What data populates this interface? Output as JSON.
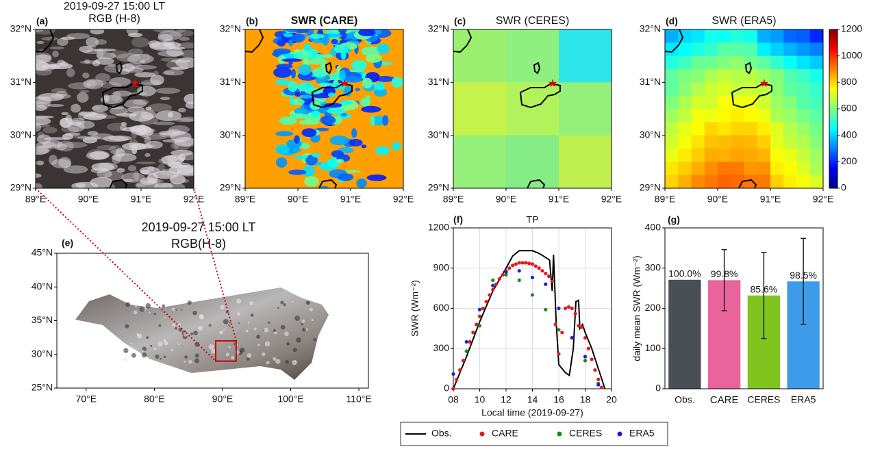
{
  "chart_data": [
    {
      "type": "image-map",
      "label": "(a)",
      "title": "2019-09-27 15:00 LT",
      "subtitle": "RGB (H-8)",
      "xlim": [
        89,
        92
      ],
      "ylim": [
        29,
        32
      ],
      "xticks": [
        {
          "value": 89,
          "label": "89°E"
        },
        {
          "value": 90,
          "label": "90°E"
        },
        {
          "value": 91,
          "label": "91°E"
        },
        {
          "value": 92,
          "label": "92°E"
        }
      ],
      "yticks": [
        {
          "value": 29,
          "label": "29°N"
        },
        {
          "value": 30,
          "label": "30°N"
        },
        {
          "value": 31,
          "label": "31°N"
        },
        {
          "value": 32,
          "label": "32°N"
        }
      ]
    },
    {
      "type": "image-map",
      "label": "(b)",
      "title": "SWR (CARE)",
      "xlim": [
        89,
        92
      ],
      "ylim": [
        29,
        32
      ],
      "xticks": [
        {
          "value": 89,
          "label": "89°E"
        },
        {
          "value": 90,
          "label": "90°E"
        },
        {
          "value": 91,
          "label": "91°E"
        },
        {
          "value": 92,
          "label": "92°E"
        }
      ],
      "yticks": [
        {
          "value": 29,
          "label": "29°N"
        },
        {
          "value": 30,
          "label": "30°N"
        },
        {
          "value": 31,
          "label": "31°N"
        },
        {
          "value": 32,
          "label": "32°N"
        }
      ]
    },
    {
      "type": "image-map",
      "label": "(c)",
      "title": "SWR (CERES)",
      "xlim": [
        89,
        92
      ],
      "ylim": [
        29,
        32
      ],
      "xticks": [
        {
          "value": 89,
          "label": "89°E"
        },
        {
          "value": 90,
          "label": "90°E"
        },
        {
          "value": 91,
          "label": "91°E"
        },
        {
          "value": 92,
          "label": "92°E"
        }
      ],
      "yticks": [
        {
          "value": 29,
          "label": "29°N"
        },
        {
          "value": 30,
          "label": "30°N"
        },
        {
          "value": 31,
          "label": "31°N"
        },
        {
          "value": 32,
          "label": "32°N"
        }
      ]
    },
    {
      "type": "image-map",
      "label": "(d)",
      "title": "SWR (ERA5)",
      "xlim": [
        89,
        92
      ],
      "ylim": [
        29,
        32
      ],
      "xticks": [
        {
          "value": 89,
          "label": "89°E"
        },
        {
          "value": 90,
          "label": "90°E"
        },
        {
          "value": 91,
          "label": "91°E"
        },
        {
          "value": 92,
          "label": "92°E"
        }
      ],
      "yticks": [
        {
          "value": 29,
          "label": "29°N"
        },
        {
          "value": 30,
          "label": "30°N"
        },
        {
          "value": 31,
          "label": "31°N"
        },
        {
          "value": 32,
          "label": "32°N"
        }
      ],
      "colorbar": {
        "lim": [
          0,
          1200
        ],
        "ticks": [
          0,
          200,
          400,
          600,
          800,
          1000,
          1200
        ]
      }
    },
    {
      "type": "image-map",
      "label": "(e)",
      "title": "2019-09-27 15:00 LT",
      "subtitle": "RGB(H-8)",
      "xlim": [
        65.7,
        111.4
      ],
      "ylim": [
        25,
        45
      ],
      "xticks": [
        {
          "value": 70,
          "label": "70°E"
        },
        {
          "value": 80,
          "label": "80°E"
        },
        {
          "value": 90,
          "label": "90°E"
        },
        {
          "value": 100,
          "label": "100°E"
        },
        {
          "value": 110,
          "label": "110°E"
        }
      ],
      "yticks": [
        {
          "value": 25,
          "label": "25°N"
        },
        {
          "value": 30,
          "label": "30°N"
        },
        {
          "value": 35,
          "label": "35°N"
        },
        {
          "value": 40,
          "label": "40°N"
        },
        {
          "value": 45,
          "label": "45°N"
        }
      ]
    },
    {
      "type": "line",
      "label": "(f)",
      "title": "TP",
      "xlabel": "Local time (2019-09-27)",
      "ylabel": "SWR (Wm⁻²)",
      "xlim": [
        8,
        20
      ],
      "ylim": [
        0,
        1200
      ],
      "grid": true,
      "xticks": [
        {
          "value": 8,
          "label": "08"
        },
        10,
        12,
        14,
        16,
        18,
        20
      ],
      "yticks": [
        0,
        300,
        600,
        900,
        1200
      ],
      "series": [
        {
          "name": "Obs.",
          "color": "#000000",
          "kind": "line",
          "x": [
            8,
            9,
            10,
            11,
            12,
            12.5,
            13,
            14,
            14.5,
            15,
            15.3,
            15.5,
            15.6,
            15.8,
            16,
            16.5,
            16.8,
            17.1,
            17.3,
            17.5,
            17.6,
            17.8,
            18,
            18.5,
            19,
            19.5
          ],
          "values": [
            0,
            240,
            500,
            730,
            900,
            990,
            1030,
            1030,
            1010,
            980,
            960,
            730,
            1000,
            500,
            180,
            120,
            100,
            300,
            650,
            660,
            450,
            480,
            420,
            300,
            150,
            0
          ]
        },
        {
          "name": "CARE",
          "color": "#e31a1c",
          "kind": "scatter",
          "x": [
            8,
            8.25,
            8.5,
            8.75,
            9,
            9.25,
            9.5,
            9.75,
            10,
            10.25,
            10.5,
            10.75,
            11,
            11.25,
            11.5,
            11.75,
            12,
            12.25,
            12.5,
            12.75,
            13,
            13.25,
            13.5,
            13.75,
            14,
            14.25,
            14.5,
            14.75,
            15,
            15.25,
            15.5,
            15.75,
            16,
            16.25,
            16.5,
            16.75,
            17,
            17.25,
            17.5,
            17.75,
            18,
            18.25,
            18.5,
            18.75,
            19,
            19.25
          ],
          "values": [
            0,
            70,
            140,
            210,
            280,
            350,
            420,
            480,
            540,
            600,
            650,
            700,
            740,
            780,
            820,
            850,
            880,
            900,
            920,
            930,
            940,
            940,
            940,
            935,
            930,
            915,
            900,
            880,
            860,
            840,
            800,
            480,
            260,
            420,
            600,
            610,
            600,
            560,
            470,
            460,
            380,
            300,
            220,
            140,
            70,
            10
          ]
        },
        {
          "name": "CERES",
          "color": "#1a8a1a",
          "kind": "scatter",
          "x": [
            9,
            10,
            11,
            12,
            13,
            14,
            15,
            16,
            17,
            18,
            19
          ],
          "values": [
            280,
            470,
            810,
            850,
            810,
            700,
            590,
            440,
            380,
            210,
            40
          ]
        },
        {
          "name": "ERA5",
          "color": "#1f1fd6",
          "kind": "scatter",
          "x": [
            8,
            9,
            10,
            11,
            12,
            13,
            14,
            15,
            16,
            17,
            18,
            19
          ],
          "values": [
            110,
            350,
            590,
            770,
            870,
            880,
            830,
            780,
            600,
            380,
            240,
            30
          ]
        }
      ]
    },
    {
      "type": "bar",
      "label": "(g)",
      "ylabel": "daily mean SWR (Wm⁻²)",
      "categories": [
        "Obs.",
        "CARE",
        "CERES",
        "ERA5"
      ],
      "values": [
        271,
        270,
        232,
        267
      ],
      "errors": [
        null,
        76,
        107,
        107
      ],
      "colors": [
        "#4a4f55",
        "#e8649a",
        "#7fc41f",
        "#3d9be9"
      ],
      "percent_labels": [
        "100.0%",
        "99.8%",
        "85.6%",
        "98.5%"
      ],
      "ylim": [
        0,
        400
      ],
      "yticks": [
        0,
        100,
        200,
        300,
        400
      ]
    }
  ]
}
